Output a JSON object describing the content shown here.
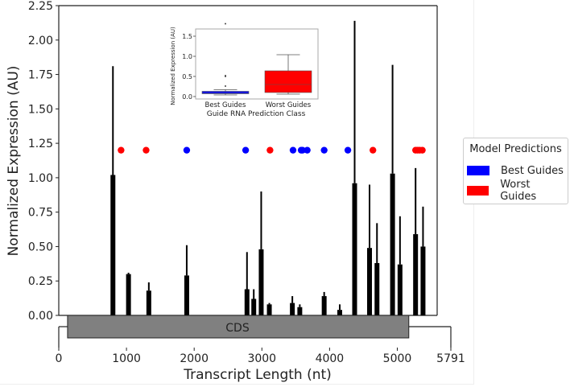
{
  "chart_data": [
    {
      "type": "bar",
      "title": "",
      "xlabel": "Transcript Length (nt)",
      "ylabel": "Normalized Expression (AU)",
      "xlim": [
        0,
        5791
      ],
      "ylim": [
        0.0,
        2.25
      ],
      "xticks": [
        "0",
        "1000",
        "2000",
        "3000",
        "4000",
        "5000",
        "5791"
      ],
      "yticks": [
        "0.00",
        "0.25",
        "0.50",
        "0.75",
        "1.00",
        "1.25",
        "1.50",
        "1.75",
        "2.00",
        "2.25"
      ],
      "grid": false,
      "annotation_region": {
        "label": "CDS",
        "start": 130,
        "end": 5170,
        "color": "#808080"
      },
      "bars": {
        "x": [
          800,
          1030,
          1330,
          1890,
          2780,
          2880,
          2990,
          3110,
          3450,
          3560,
          3920,
          4150,
          4370,
          4590,
          4700,
          4930,
          5040,
          5270,
          5380
        ],
        "values": [
          1.02,
          0.3,
          0.18,
          0.29,
          0.19,
          0.12,
          0.48,
          0.08,
          0.09,
          0.06,
          0.14,
          0.04,
          0.96,
          0.49,
          0.38,
          1.03,
          0.37,
          0.59,
          0.5
        ],
        "error_upper": [
          1.81,
          0.31,
          0.24,
          0.51,
          0.46,
          0.19,
          0.9,
          0.09,
          0.14,
          0.08,
          0.17,
          0.08,
          2.14,
          0.95,
          0.67,
          1.82,
          0.72,
          1.07,
          0.79
        ],
        "color": "#000000"
      },
      "scatter": [
        {
          "name": "Best Guides",
          "color": "#0000ff",
          "y": 1.2,
          "x": [
            1890,
            2760,
            3460,
            3580,
            3600,
            3670,
            3920,
            4270
          ]
        },
        {
          "name": "Worst Guides",
          "color": "#ff0000",
          "y": 1.2,
          "x": [
            920,
            1290,
            3120,
            4640,
            5270,
            5300,
            5330,
            5370
          ]
        }
      ],
      "legend": {
        "title": "Model Predictions",
        "position": "right",
        "entries": [
          {
            "label": "Best Guides",
            "color": "#0000ff"
          },
          {
            "label": "Worst Guides",
            "color": "#ff0000"
          }
        ]
      }
    },
    {
      "type": "box",
      "title": "",
      "xlabel": "Guide RNA Prediction Class",
      "ylabel": "Normalized Expression (AU)",
      "categories": [
        "Best Guides",
        "Worst Guides"
      ],
      "yticks": [
        "0.0",
        "0.5",
        "1.0",
        "1.5"
      ],
      "ylim": [
        -0.09,
        1.9
      ],
      "boxes": [
        {
          "name": "Best Guides",
          "color": "#0000ff",
          "q1": 0.07,
          "median": 0.09,
          "q3": 0.13,
          "whisker_low": 0.04,
          "whisker_high": 0.17,
          "outliers": [
            0.26,
            0.5,
            0.52,
            1.81
          ]
        },
        {
          "name": "Worst Guides",
          "color": "#ff0000",
          "q1": 0.1,
          "median": 0.3,
          "q3": 0.64,
          "whisker_low": 0.06,
          "whisker_high": 1.04,
          "outliers": []
        }
      ]
    }
  ],
  "main_chart": {
    "xlabel": "Transcript Length (nt)",
    "ylabel": "Normalized Expression (AU)",
    "cds_label": "CDS",
    "xticks": [
      "0",
      "1000",
      "2000",
      "3000",
      "4000",
      "5000",
      "5791"
    ],
    "yticks": [
      "0.00",
      "0.25",
      "0.50",
      "0.75",
      "1.00",
      "1.25",
      "1.50",
      "1.75",
      "2.00",
      "2.25"
    ]
  },
  "inset": {
    "xlabel": "Guide RNA Prediction Class",
    "ylabel": "Normalized Expression (AU)",
    "categories": [
      "Best Guides",
      "Worst Guides"
    ],
    "yticks": [
      "0.0",
      "0.5",
      "1.0",
      "1.5"
    ]
  },
  "legend": {
    "title": "Model Predictions",
    "items": [
      {
        "label": "Best Guides",
        "color": "#0000ff"
      },
      {
        "label": "Worst Guides",
        "color": "#ff0000"
      }
    ]
  }
}
